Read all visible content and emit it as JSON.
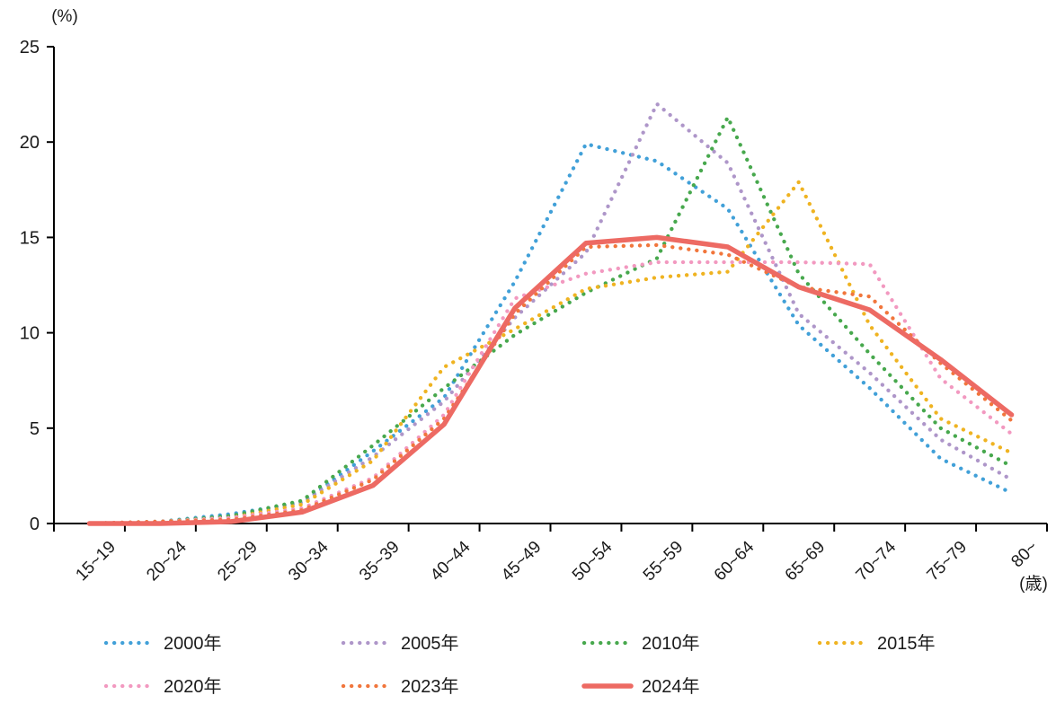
{
  "chart_data": {
    "type": "line",
    "title": "",
    "y_unit_label": "(%)",
    "x_unit_label": "(歳)",
    "ylim": [
      0,
      25
    ],
    "yticks": [
      0,
      5,
      10,
      15,
      20,
      25
    ],
    "grid": false,
    "legend_position": "bottom",
    "categories": [
      "15~19",
      "20~24",
      "25~29",
      "30~34",
      "35~39",
      "40~44",
      "45~49",
      "50~54",
      "55~59",
      "60~64",
      "65~69",
      "70~74",
      "75~79",
      "80~"
    ],
    "series": [
      {
        "name": "2000年",
        "color": "#41A0D8",
        "style": "dotted",
        "values": [
          0.0,
          0.1,
          0.5,
          1.1,
          3.8,
          6.6,
          12.7,
          19.9,
          19.0,
          16.5,
          10.4,
          7.1,
          3.4,
          1.6
        ]
      },
      {
        "name": "2005年",
        "color": "#AE96C9",
        "style": "dotted",
        "values": [
          0.0,
          0.1,
          0.4,
          1.1,
          3.5,
          6.4,
          10.8,
          14.2,
          22.0,
          18.9,
          11.0,
          7.9,
          4.4,
          2.3
        ]
      },
      {
        "name": "2010年",
        "color": "#47A84D",
        "style": "dotted",
        "values": [
          0.0,
          0.1,
          0.4,
          1.2,
          4.1,
          7.1,
          9.9,
          12.1,
          13.9,
          21.3,
          13.1,
          8.9,
          5.0,
          3.0
        ]
      },
      {
        "name": "2015年",
        "color": "#EFB321",
        "style": "dotted",
        "values": [
          0.0,
          0.1,
          0.3,
          1.0,
          3.3,
          8.2,
          10.2,
          12.3,
          12.9,
          13.2,
          17.9,
          10.4,
          5.5,
          3.7
        ]
      },
      {
        "name": "2020年",
        "color": "#F299C0",
        "style": "dotted",
        "values": [
          0.0,
          0.1,
          0.3,
          0.8,
          2.4,
          5.7,
          11.8,
          13.1,
          13.7,
          13.7,
          13.7,
          13.6,
          7.6,
          4.7
        ]
      },
      {
        "name": "2023年",
        "color": "#F1763C",
        "style": "dotted",
        "values": [
          0.0,
          0.1,
          0.2,
          0.7,
          2.3,
          5.5,
          11.0,
          14.5,
          14.6,
          14.1,
          12.4,
          11.9,
          8.4,
          5.4
        ]
      },
      {
        "name": "2024年",
        "color": "#ED6A63",
        "style": "solid",
        "values": [
          0.0,
          0.0,
          0.1,
          0.6,
          2.0,
          5.2,
          11.3,
          14.7,
          15.0,
          14.5,
          12.4,
          11.2,
          8.6,
          5.7
        ]
      }
    ]
  }
}
